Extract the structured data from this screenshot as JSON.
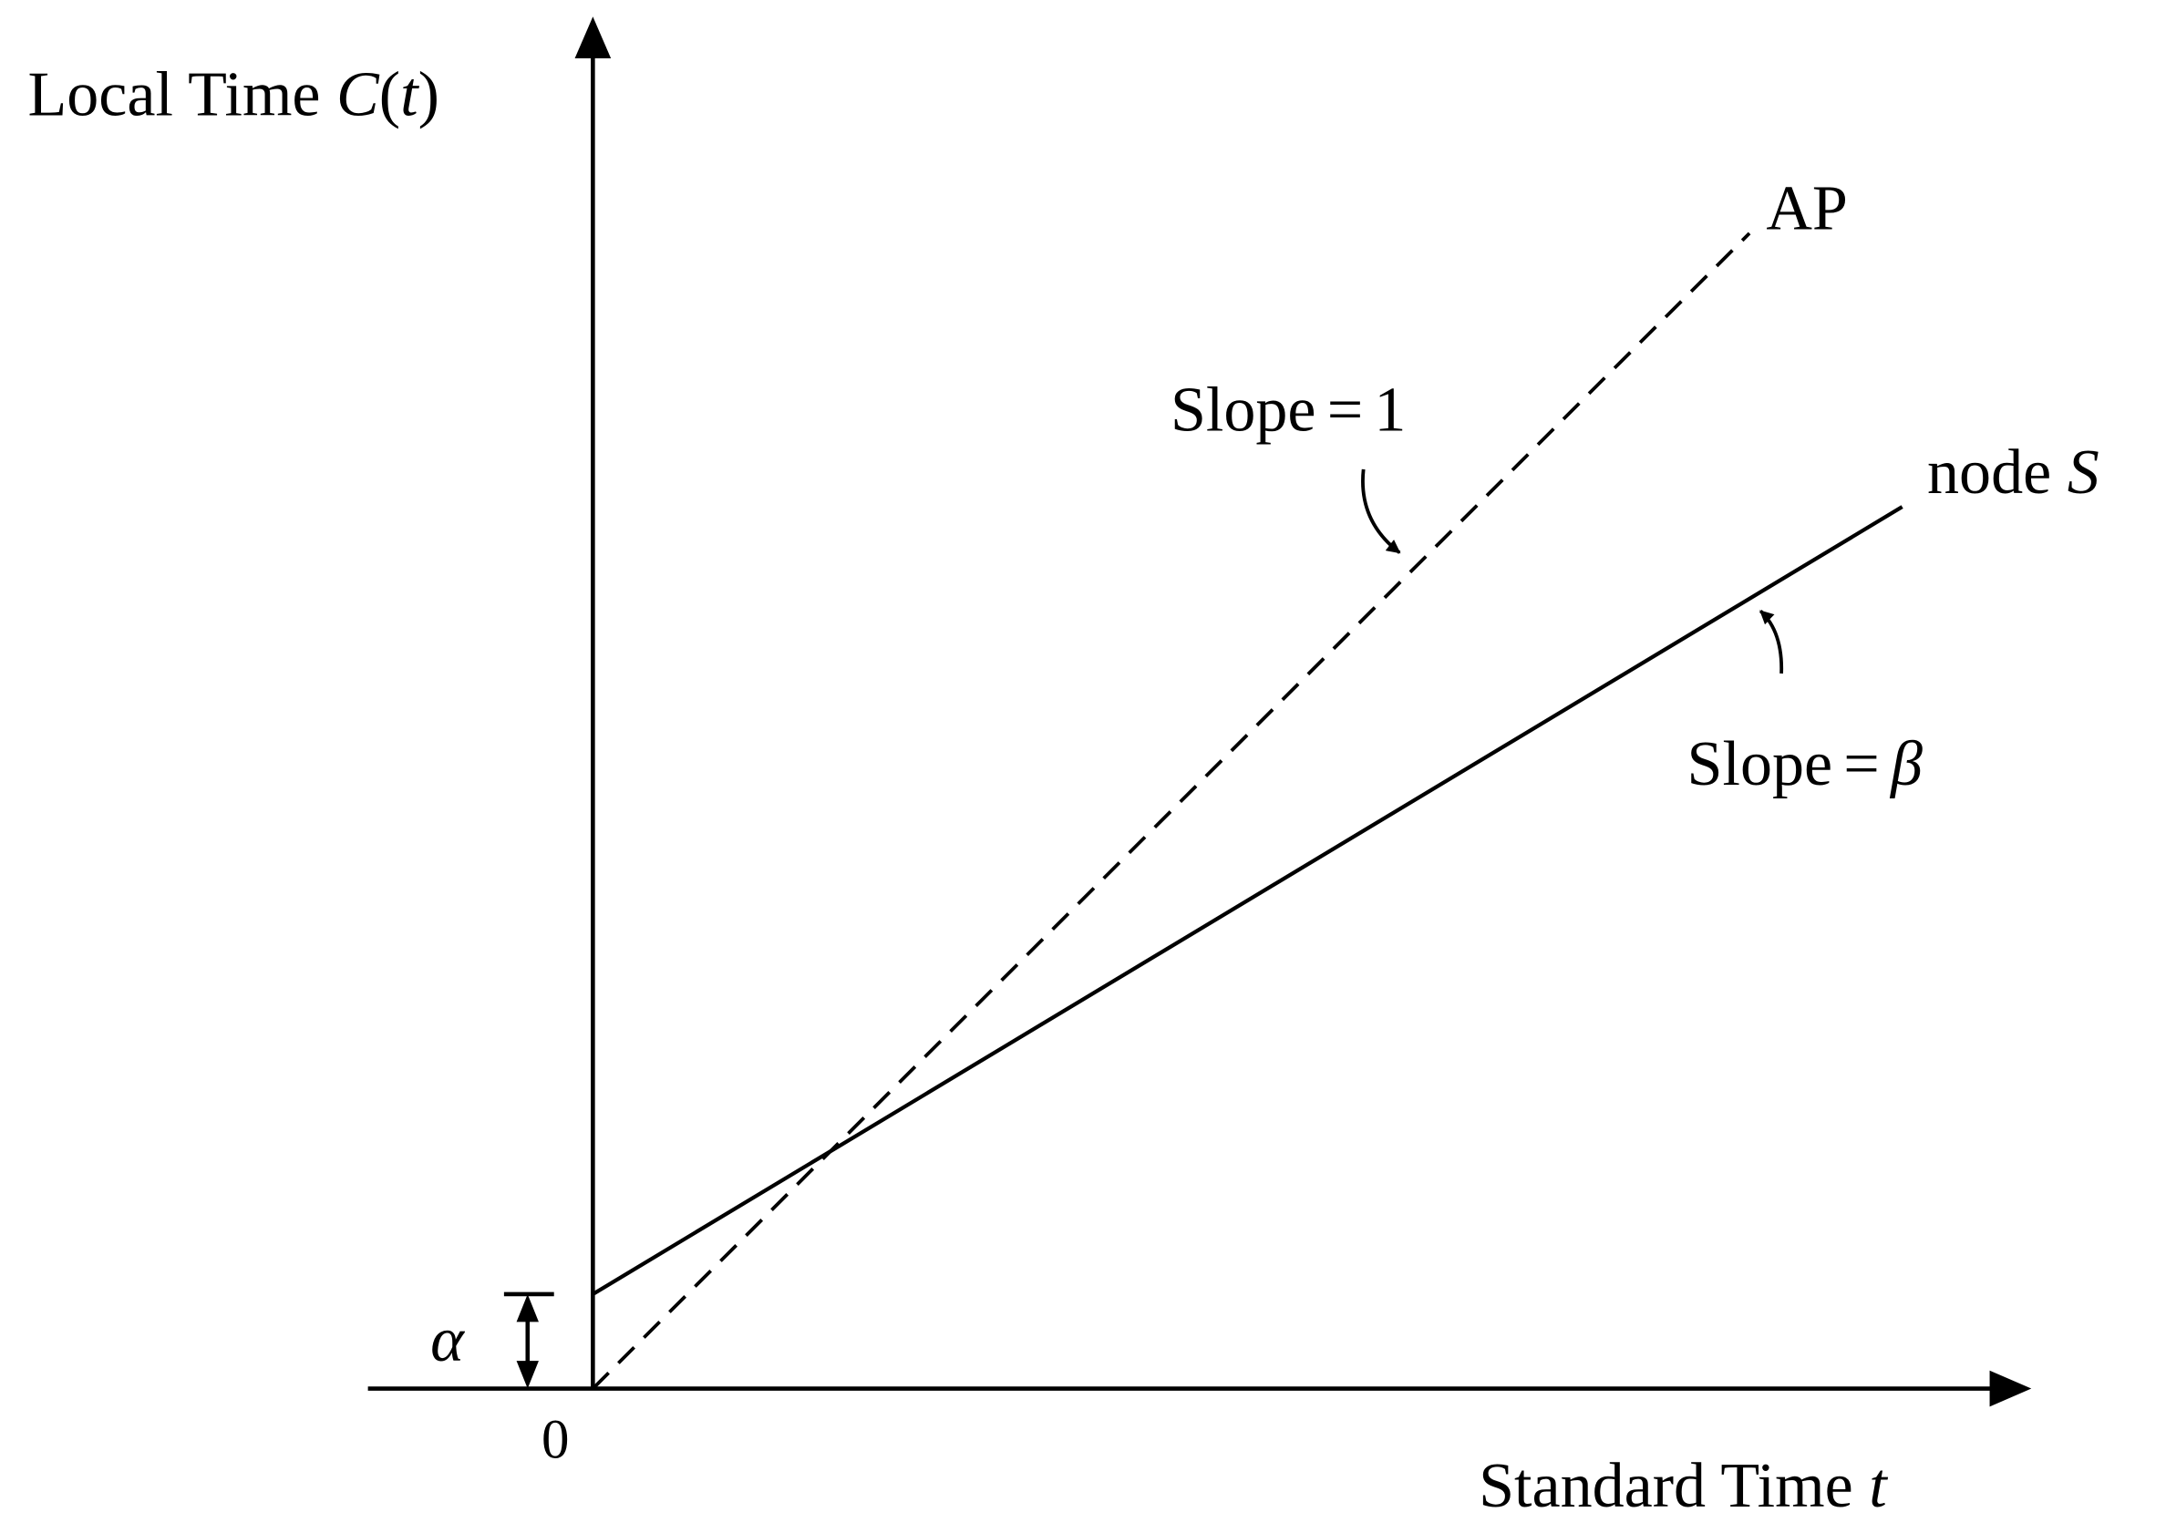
{
  "labels": {
    "y_axis": [
      "Local Time",
      "C",
      "(",
      "t",
      ")"
    ],
    "x_axis": [
      "Standard Time",
      "t"
    ],
    "origin": "0",
    "offset": "α",
    "ap": "AP",
    "ap_slope": [
      "Slope",
      "=",
      "1"
    ],
    "node": [
      "node",
      "S"
    ],
    "node_slope": [
      "Slope",
      "=",
      "β"
    ]
  }
}
